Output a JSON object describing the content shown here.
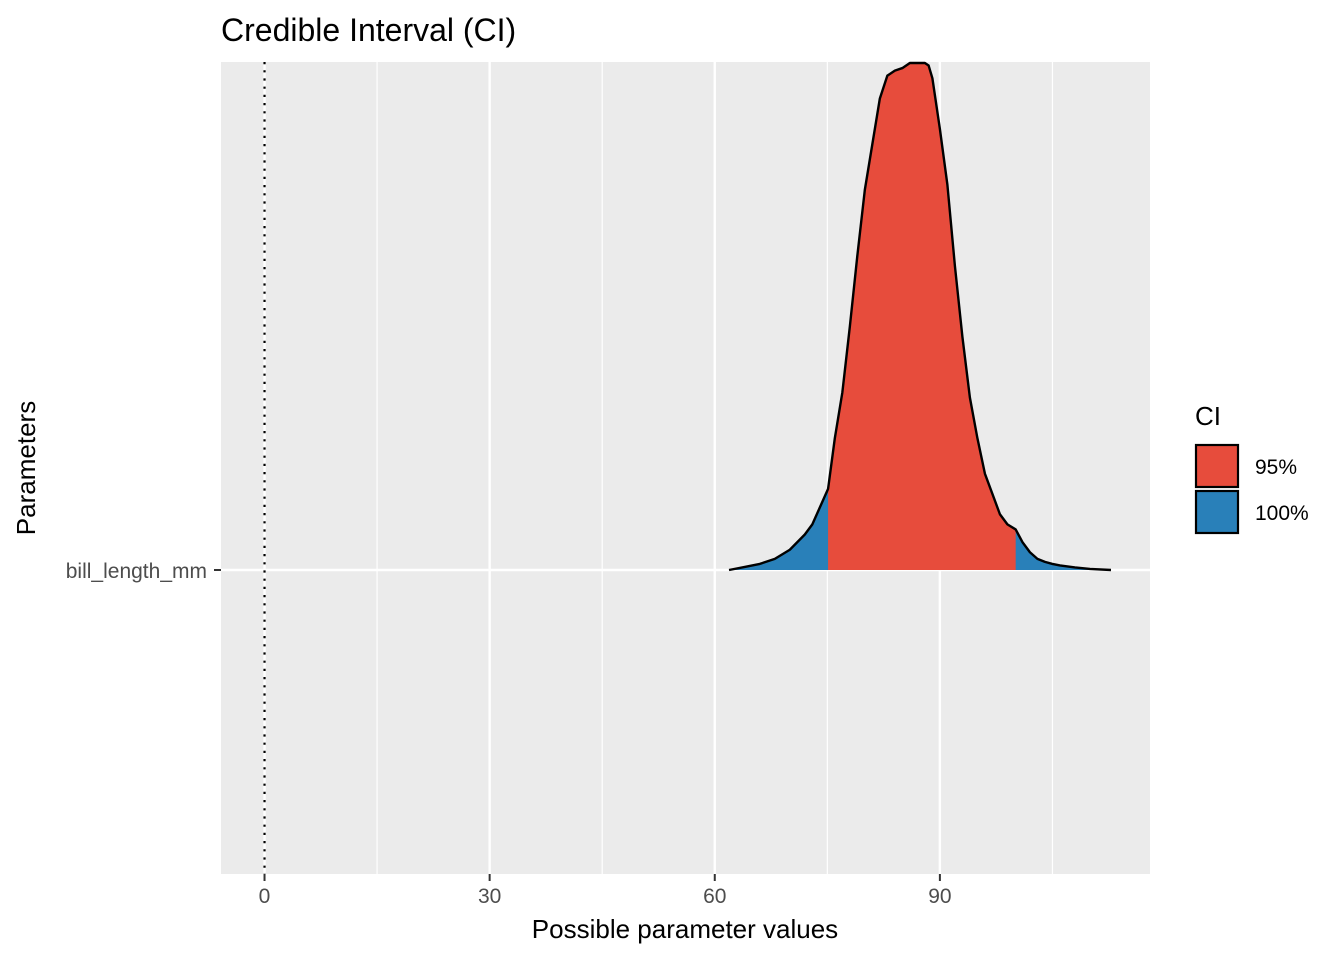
{
  "chart_data": {
    "type": "area",
    "title": "Credible Interval (CI)",
    "xlabel": "Possible parameter values",
    "ylabel": "Parameters",
    "xlim": [
      -5.8,
      118
    ],
    "xticks": [
      0,
      30,
      60,
      90
    ],
    "xtick_labels": [
      "0",
      "30",
      "60",
      "90"
    ],
    "x_minor_gridlines": [
      15,
      45,
      75,
      105
    ],
    "categories": [
      "bill_length_mm"
    ],
    "reference_line": {
      "x": 0,
      "style": "dotted"
    },
    "grid": true,
    "legend": {
      "title": "CI",
      "position": "right",
      "entries": [
        {
          "label": "95%",
          "color": "#E74C3C"
        },
        {
          "label": "100%",
          "color": "#2980B9"
        }
      ]
    },
    "intervals": [
      {
        "name": "95%",
        "low": 75.1,
        "high": 100.1,
        "color": "#E74C3C"
      },
      {
        "name": "100%",
        "low": 61.9,
        "high": 112.8,
        "color": "#2980B9"
      }
    ],
    "density": {
      "parameter": "bill_length_mm",
      "x": [
        61.9,
        64,
        66,
        68,
        70,
        72,
        73,
        75.1,
        76,
        77,
        78,
        79,
        80,
        81,
        82,
        83,
        84,
        85,
        86,
        87,
        88,
        88.5,
        89,
        90,
        91,
        92,
        93,
        94,
        95,
        96,
        97,
        98,
        99,
        100.1,
        101,
        102,
        103,
        104,
        105,
        106,
        108,
        110,
        112.8
      ],
      "y": [
        0.0,
        0.006,
        0.012,
        0.022,
        0.04,
        0.07,
        0.09,
        0.16,
        0.26,
        0.35,
        0.48,
        0.62,
        0.75,
        0.84,
        0.93,
        0.975,
        0.985,
        0.99,
        1.0,
        1.0,
        1.0,
        0.995,
        0.97,
        0.87,
        0.76,
        0.6,
        0.46,
        0.34,
        0.26,
        0.19,
        0.15,
        0.11,
        0.09,
        0.08,
        0.055,
        0.035,
        0.022,
        0.016,
        0.012,
        0.009,
        0.005,
        0.002,
        0.0
      ]
    }
  }
}
